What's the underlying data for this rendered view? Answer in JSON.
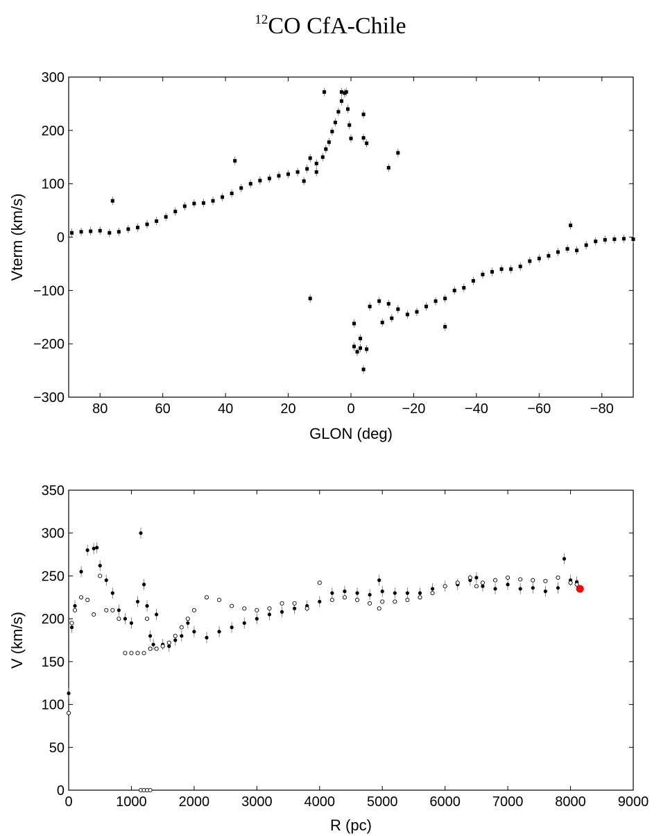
{
  "title": {
    "sup": "12",
    "main": "CO CfA-Chile"
  },
  "chart_data": [
    {
      "type": "scatter",
      "xlabel": "GLON (deg)",
      "ylabel": "Vterm (km/s)",
      "xlim": [
        90,
        -90
      ],
      "ylim": [
        -300,
        300
      ],
      "xticks": [
        80,
        60,
        40,
        20,
        0,
        -20,
        -40,
        -60,
        -80
      ],
      "yticks": [
        300,
        200,
        100,
        0,
        -100,
        -200,
        -300
      ],
      "xtick_labels": [
        "80",
        "60",
        "40",
        "20",
        "0",
        "−20",
        "−40",
        "−60",
        "−80"
      ],
      "ytick_labels": [
        "300",
        "200",
        "100",
        "0",
        "−100",
        "−200",
        "−300"
      ],
      "grid": false,
      "series": [
        {
          "marker": "square",
          "color": "#000000",
          "points": [
            [
              89,
              8
            ],
            [
              86,
              10
            ],
            [
              83,
              11
            ],
            [
              80,
              12
            ],
            [
              77,
              8
            ],
            [
              74,
              10
            ],
            [
              71,
              15
            ],
            [
              68,
              18
            ],
            [
              65,
              24
            ],
            [
              62,
              30
            ],
            [
              59,
              38
            ],
            [
              56,
              48
            ],
            [
              53,
              58
            ],
            [
              50,
              63
            ],
            [
              47,
              64
            ],
            [
              44,
              68
            ],
            [
              41,
              75
            ],
            [
              38,
              82
            ],
            [
              35,
              92
            ],
            [
              32,
              100
            ],
            [
              29,
              106
            ],
            [
              26,
              110
            ],
            [
              23,
              115
            ],
            [
              20,
              118
            ],
            [
              17,
              122
            ],
            [
              14,
              128
            ],
            [
              11,
              138
            ],
            [
              9,
              150
            ],
            [
              8,
              165
            ],
            [
              7,
              178
            ],
            [
              6,
              198
            ],
            [
              5,
              215
            ],
            [
              4,
              235
            ],
            [
              3,
              255
            ],
            [
              2,
              270
            ],
            [
              1.5,
              272
            ],
            [
              1,
              240
            ],
            [
              0.5,
              210
            ],
            [
              0,
              185
            ],
            [
              76,
              68
            ],
            [
              37,
              143
            ],
            [
              13,
              148
            ],
            [
              11,
              122
            ],
            [
              15,
              105
            ],
            [
              8.5,
              272
            ],
            [
              3,
              272
            ],
            [
              -4,
              230
            ],
            [
              -4,
              186
            ],
            [
              -5,
              176
            ],
            [
              -12,
              130
            ],
            [
              -15,
              158
            ],
            [
              13,
              -115
            ],
            [
              -1,
              -162
            ],
            [
              -1,
              -205
            ],
            [
              -2,
              -215
            ],
            [
              -3,
              -208
            ],
            [
              -3,
              -190
            ],
            [
              -4,
              -248
            ],
            [
              -5,
              -210
            ],
            [
              -6,
              -130
            ],
            [
              -9,
              -120
            ],
            [
              -12,
              -125
            ],
            [
              -15,
              -135
            ],
            [
              -18,
              -145
            ],
            [
              -21,
              -140
            ],
            [
              -24,
              -130
            ],
            [
              -27,
              -120
            ],
            [
              -30,
              -115
            ],
            [
              -33,
              -100
            ],
            [
              -36,
              -95
            ],
            [
              -39,
              -82
            ],
            [
              -42,
              -70
            ],
            [
              -45,
              -65
            ],
            [
              -48,
              -60
            ],
            [
              -51,
              -60
            ],
            [
              -54,
              -55
            ],
            [
              -57,
              -45
            ],
            [
              -60,
              -40
            ],
            [
              -63,
              -35
            ],
            [
              -66,
              -28
            ],
            [
              -69,
              -22
            ],
            [
              -70,
              22
            ],
            [
              -72,
              -25
            ],
            [
              -75,
              -15
            ],
            [
              -78,
              -8
            ],
            [
              -81,
              -5
            ],
            [
              -84,
              -4
            ],
            [
              -87,
              -3
            ],
            [
              -90,
              -4
            ],
            [
              -30,
              -168
            ],
            [
              -13,
              -152
            ],
            [
              -10,
              -160
            ]
          ]
        }
      ]
    },
    {
      "type": "scatter",
      "xlabel": "R (pc)",
      "ylabel": "V (km/s)",
      "xlim": [
        0,
        9000
      ],
      "ylim": [
        0,
        350
      ],
      "xticks": [
        0,
        1000,
        2000,
        3000,
        4000,
        5000,
        6000,
        7000,
        8000,
        9000
      ],
      "yticks": [
        0,
        50,
        100,
        150,
        200,
        250,
        300,
        350
      ],
      "grid": false,
      "series": [
        {
          "marker": "filled-circle",
          "color": "#000000",
          "points": [
            [
              0,
              113
            ],
            [
              50,
              190
            ],
            [
              100,
              215
            ],
            [
              200,
              255
            ],
            [
              300,
              280
            ],
            [
              400,
              282
            ],
            [
              450,
              283
            ],
            [
              500,
              262
            ],
            [
              600,
              245
            ],
            [
              700,
              230
            ],
            [
              800,
              210
            ],
            [
              900,
              200
            ],
            [
              1000,
              195
            ],
            [
              1100,
              220
            ],
            [
              1150,
              300
            ],
            [
              1200,
              240
            ],
            [
              1250,
              215
            ],
            [
              1300,
              180
            ],
            [
              1350,
              170
            ],
            [
              1400,
              205
            ],
            [
              1500,
              170
            ],
            [
              1600,
              168
            ],
            [
              1700,
              175
            ],
            [
              1800,
              180
            ],
            [
              1900,
              195
            ],
            [
              2000,
              185
            ],
            [
              2200,
              178
            ],
            [
              2400,
              185
            ],
            [
              2600,
              190
            ],
            [
              2800,
              195
            ],
            [
              3000,
              200
            ],
            [
              3200,
              205
            ],
            [
              3400,
              208
            ],
            [
              3600,
              212
            ],
            [
              3800,
              215
            ],
            [
              4000,
              220
            ],
            [
              4200,
              230
            ],
            [
              4400,
              232
            ],
            [
              4600,
              230
            ],
            [
              4800,
              228
            ],
            [
              4950,
              245
            ],
            [
              5000,
              232
            ],
            [
              5200,
              230
            ],
            [
              5400,
              230
            ],
            [
              5600,
              230
            ],
            [
              5800,
              235
            ],
            [
              6000,
              238
            ],
            [
              6200,
              240
            ],
            [
              6400,
              245
            ],
            [
              6500,
              248
            ],
            [
              6600,
              238
            ],
            [
              6800,
              235
            ],
            [
              7000,
              240
            ],
            [
              7200,
              235
            ],
            [
              7400,
              236
            ],
            [
              7600,
              232
            ],
            [
              7800,
              236
            ],
            [
              7900,
              270
            ],
            [
              8000,
              245
            ],
            [
              8100,
              243
            ]
          ]
        },
        {
          "marker": "open-circle",
          "color": "#000000",
          "points": [
            [
              0,
              90
            ],
            [
              50,
              195
            ],
            [
              100,
              210
            ],
            [
              200,
              225
            ],
            [
              300,
              222
            ],
            [
              400,
              205
            ],
            [
              500,
              250
            ],
            [
              600,
              210
            ],
            [
              700,
              210
            ],
            [
              800,
              200
            ],
            [
              900,
              160
            ],
            [
              1000,
              160
            ],
            [
              1100,
              160
            ],
            [
              1200,
              160
            ],
            [
              1250,
              200
            ],
            [
              1300,
              165
            ],
            [
              1400,
              165
            ],
            [
              1500,
              168
            ],
            [
              1600,
              172
            ],
            [
              1700,
              180
            ],
            [
              1800,
              190
            ],
            [
              1900,
              200
            ],
            [
              2000,
              210
            ],
            [
              2200,
              225
            ],
            [
              2400,
              222
            ],
            [
              2600,
              215
            ],
            [
              2800,
              212
            ],
            [
              3000,
              210
            ],
            [
              3200,
              212
            ],
            [
              3400,
              218
            ],
            [
              3600,
              218
            ],
            [
              3800,
              212
            ],
            [
              4000,
              242
            ],
            [
              4200,
              222
            ],
            [
              4400,
              225
            ],
            [
              4600,
              222
            ],
            [
              4800,
              218
            ],
            [
              4950,
              212
            ],
            [
              5000,
              220
            ],
            [
              5200,
              220
            ],
            [
              5400,
              222
            ],
            [
              5600,
              225
            ],
            [
              5800,
              230
            ],
            [
              6000,
              238
            ],
            [
              6200,
              242
            ],
            [
              6400,
              248
            ],
            [
              6500,
              238
            ],
            [
              6600,
              242
            ],
            [
              6800,
              245
            ],
            [
              7000,
              248
            ],
            [
              7200,
              246
            ],
            [
              7400,
              245
            ],
            [
              7600,
              244
            ],
            [
              7800,
              248
            ],
            [
              8000,
              242
            ],
            [
              8100,
              240
            ],
            [
              1150,
              0
            ],
            [
              1200,
              0
            ],
            [
              1250,
              0
            ],
            [
              1300,
              0
            ]
          ]
        },
        {
          "marker": "large-dot",
          "color": "#ff0000",
          "points": [
            [
              8150,
              235
            ]
          ]
        }
      ]
    }
  ]
}
